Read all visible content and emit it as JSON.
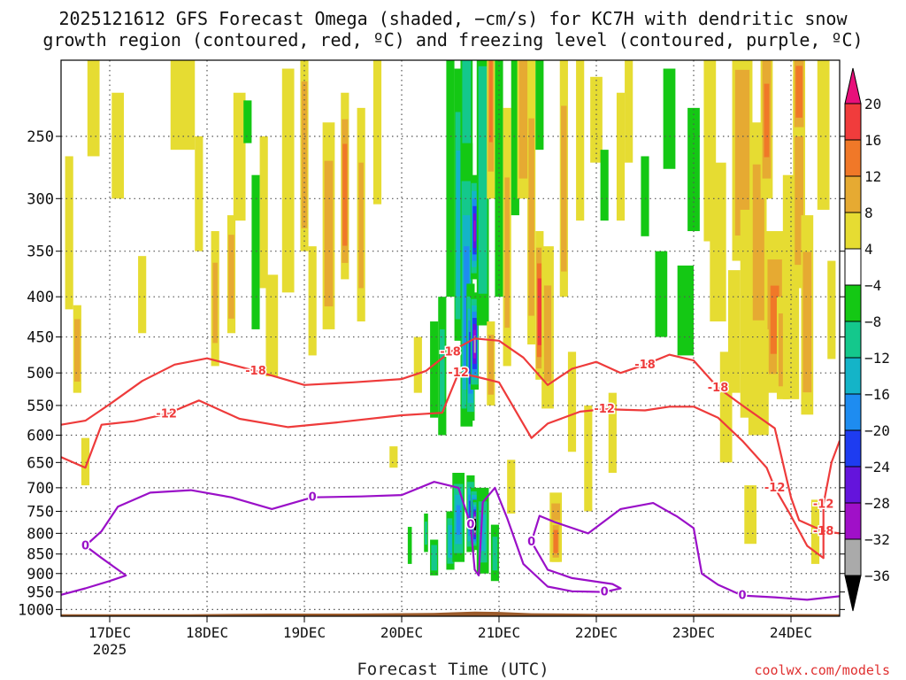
{
  "title": {
    "line1": "2025121612 GFS Forecast Omega (shaded, −cm/s) for KC7H with dendritic snow",
    "line2": "growth region (contoured, red, ºC) and freezing level (contoured, purple, ºC)"
  },
  "credit": "coolwx.com/models",
  "colors": {
    "grid": "#555555",
    "contour_dgz": "#ee3b3b",
    "contour_freezing": "#9a10c8",
    "ground": "#9b5a2a"
  },
  "chart_data": {
    "type": "heatmap",
    "title": "2025121612 GFS Forecast Omega (shaded, −cm/s) for KC7H with dendritic snow growth region (contoured, red, ºC) and freezing level (contoured, purple, ºC)",
    "xlabel": "Forecast Time (UTC)",
    "ylabel": "",
    "x_ticks": [
      "17DEC",
      "18DEC",
      "19DEC",
      "20DEC",
      "21DEC",
      "22DEC",
      "23DEC",
      "24DEC"
    ],
    "x_tick_year": "2025",
    "x_range_hours": [
      -12,
      180
    ],
    "y_ticks": [
      250,
      300,
      350,
      400,
      450,
      500,
      550,
      600,
      650,
      700,
      750,
      800,
      850,
      900,
      950,
      1000
    ],
    "y_range_hpa": [
      200,
      1020
    ],
    "colorbar": {
      "labels": [
        "20",
        "16",
        "12",
        "8",
        "4",
        "−4",
        "−8",
        "−12",
        "−16",
        "−20",
        "−24",
        "−28",
        "−32",
        "−36"
      ],
      "bins": [
        {
          "min": 20,
          "max": null,
          "color": "#e8107a"
        },
        {
          "min": 16,
          "max": 20,
          "color": "#f03c3c"
        },
        {
          "min": 12,
          "max": 16,
          "color": "#f07828"
        },
        {
          "min": 8,
          "max": 12,
          "color": "#e6aa32"
        },
        {
          "min": 4,
          "max": 8,
          "color": "#e6dc32"
        },
        {
          "min": -4,
          "max": 4,
          "color": "#ffffff"
        },
        {
          "min": -8,
          "max": -4,
          "color": "#14c814"
        },
        {
          "min": -12,
          "max": -8,
          "color": "#14c88c"
        },
        {
          "min": -16,
          "max": -12,
          "color": "#14b4c8"
        },
        {
          "min": -20,
          "max": -16,
          "color": "#1e8cf0"
        },
        {
          "min": -24,
          "max": -20,
          "color": "#1e3cf0"
        },
        {
          "min": -28,
          "max": -24,
          "color": "#6414dc"
        },
        {
          "min": -32,
          "max": -28,
          "color": "#a010c8"
        },
        {
          "min": -36,
          "max": -32,
          "color": "#aaaaaa"
        },
        {
          "min": null,
          "max": -36,
          "color": "#000000"
        }
      ]
    },
    "contour_labels": {
      "dgz_minus18": "-18",
      "dgz_minus12": "-12",
      "freezing_zero": "0"
    },
    "contours": {
      "dgz_minus18": [
        [
          -12,
          582
        ],
        [
          -6,
          575
        ],
        [
          0,
          548
        ],
        [
          8,
          512
        ],
        [
          16,
          488
        ],
        [
          24,
          479
        ],
        [
          36,
          497
        ],
        [
          48,
          518
        ],
        [
          60,
          514
        ],
        [
          72,
          509
        ],
        [
          78,
          497
        ],
        [
          84,
          470
        ],
        [
          90,
          452
        ],
        [
          96,
          455
        ],
        [
          102,
          478
        ],
        [
          108,
          518
        ],
        [
          114,
          494
        ],
        [
          120,
          484
        ],
        [
          126,
          500
        ],
        [
          132,
          488
        ],
        [
          138,
          474
        ],
        [
          144,
          482
        ],
        [
          150,
          522
        ],
        [
          156,
          550
        ],
        [
          164,
          588
        ],
        [
          168,
          720
        ],
        [
          170,
          770
        ],
        [
          176,
          795
        ],
        [
          180,
          800
        ]
      ],
      "dgz_minus12": [
        [
          -12,
          640
        ],
        [
          -6,
          660
        ],
        [
          -2,
          582
        ],
        [
          6,
          576
        ],
        [
          14,
          564
        ],
        [
          22,
          542
        ],
        [
          32,
          572
        ],
        [
          44,
          586
        ],
        [
          56,
          578
        ],
        [
          72,
          566
        ],
        [
          82,
          562
        ],
        [
          86,
          500
        ],
        [
          90,
          505
        ],
        [
          96,
          514
        ],
        [
          104,
          605
        ],
        [
          108,
          580
        ],
        [
          116,
          560
        ],
        [
          122,
          556
        ],
        [
          132,
          558
        ],
        [
          138,
          552
        ],
        [
          144,
          552
        ],
        [
          150,
          570
        ],
        [
          156,
          610
        ],
        [
          162,
          660
        ],
        [
          164,
          700
        ],
        [
          168,
          760
        ],
        [
          172,
          830
        ],
        [
          176,
          860
        ],
        [
          176,
          735
        ],
        [
          178,
          650
        ],
        [
          180,
          610
        ]
      ],
      "freezing_zero": [
        [
          -12,
          958
        ],
        [
          -6,
          940
        ],
        [
          0,
          920
        ],
        [
          4,
          905
        ],
        [
          -2,
          860
        ],
        [
          -6,
          830
        ],
        [
          -2,
          795
        ],
        [
          2,
          740
        ],
        [
          10,
          710
        ],
        [
          20,
          705
        ],
        [
          30,
          720
        ],
        [
          40,
          745
        ],
        [
          50,
          720
        ],
        [
          62,
          718
        ],
        [
          72,
          715
        ],
        [
          80,
          688
        ],
        [
          86,
          700
        ],
        [
          89,
          780
        ],
        [
          90,
          890
        ],
        [
          91,
          905
        ],
        [
          92,
          730
        ],
        [
          95,
          700
        ],
        [
          98,
          765
        ],
        [
          102,
          875
        ],
        [
          108,
          935
        ],
        [
          114,
          948
        ],
        [
          122,
          950
        ],
        [
          126,
          940
        ],
        [
          124,
          928
        ],
        [
          114,
          912
        ],
        [
          108,
          890
        ],
        [
          104,
          820
        ],
        [
          106,
          760
        ],
        [
          110,
          775
        ],
        [
          118,
          800
        ],
        [
          126,
          745
        ],
        [
          134,
          732
        ],
        [
          140,
          762
        ],
        [
          144,
          788
        ],
        [
          146,
          900
        ],
        [
          150,
          930
        ],
        [
          156,
          960
        ],
        [
          164,
          965
        ],
        [
          172,
          972
        ],
        [
          180,
          962
        ]
      ]
    },
    "omega_blobs": [
      {
        "t": -10,
        "p": 340,
        "w": 2,
        "h": 150,
        "v": 5
      },
      {
        "t": -8,
        "p": 470,
        "w": 2,
        "h": 120,
        "v": 9
      },
      {
        "t": -6,
        "p": 650,
        "w": 2,
        "h": 90,
        "v": 6
      },
      {
        "t": -4,
        "p": 230,
        "w": 3,
        "h": 70,
        "v": 5
      },
      {
        "t": 2,
        "p": 260,
        "w": 3,
        "h": 80,
        "v": 5
      },
      {
        "t": 8,
        "p": 400,
        "w": 2,
        "h": 90,
        "v": 6
      },
      {
        "t": 18,
        "p": 230,
        "w": 6,
        "h": 60,
        "v": 5
      },
      {
        "t": 22,
        "p": 300,
        "w": 2,
        "h": 100,
        "v": 6
      },
      {
        "t": 26,
        "p": 410,
        "w": 2,
        "h": 160,
        "v": 8
      },
      {
        "t": 30,
        "p": 380,
        "w": 2,
        "h": 130,
        "v": 9
      },
      {
        "t": 32,
        "p": 270,
        "w": 3,
        "h": 100,
        "v": 5
      },
      {
        "t": 34,
        "p": 240,
        "w": 2,
        "h": 30,
        "v": -6
      },
      {
        "t": 36,
        "p": 360,
        "w": 2,
        "h": 160,
        "v": -6
      },
      {
        "t": 38,
        "p": 320,
        "w": 2,
        "h": 140,
        "v": 7
      },
      {
        "t": 40,
        "p": 440,
        "w": 3,
        "h": 130,
        "v": 5
      },
      {
        "t": 44,
        "p": 300,
        "w": 3,
        "h": 190,
        "v": 5
      },
      {
        "t": 48,
        "p": 270,
        "w": 2,
        "h": 160,
        "v": 9
      },
      {
        "t": 50,
        "p": 410,
        "w": 2,
        "h": 130,
        "v": 6
      },
      {
        "t": 54,
        "p": 340,
        "w": 3,
        "h": 200,
        "v": 9
      },
      {
        "t": 58,
        "p": 300,
        "w": 2,
        "h": 160,
        "v": 13
      },
      {
        "t": 62,
        "p": 330,
        "w": 2,
        "h": 200,
        "v": 8
      },
      {
        "t": 66,
        "p": 250,
        "w": 2,
        "h": 110,
        "v": 6
      },
      {
        "t": 70,
        "p": 640,
        "w": 2,
        "h": 40,
        "v": 5
      },
      {
        "t": 74,
        "p": 830,
        "w": 1,
        "h": 90,
        "v": -6
      },
      {
        "t": 76,
        "p": 490,
        "w": 2,
        "h": 80,
        "v": 5
      },
      {
        "t": 78,
        "p": 800,
        "w": 1,
        "h": 90,
        "v": -8
      },
      {
        "t": 80,
        "p": 500,
        "w": 2,
        "h": 140,
        "v": -6
      },
      {
        "t": 80,
        "p": 860,
        "w": 2,
        "h": 90,
        "v": -9
      },
      {
        "t": 82,
        "p": 500,
        "w": 2,
        "h": 200,
        "v": -8
      },
      {
        "t": 84,
        "p": 300,
        "w": 2,
        "h": 200,
        "v": -7
      },
      {
        "t": 84,
        "p": 820,
        "w": 2,
        "h": 140,
        "v": -14
      },
      {
        "t": 86,
        "p": 330,
        "w": 2,
        "h": 250,
        "v": -13
      },
      {
        "t": 86,
        "p": 770,
        "w": 3,
        "h": 200,
        "v": -16
      },
      {
        "t": 88,
        "p": 200,
        "w": 3,
        "h": 170,
        "v": -10
      },
      {
        "t": 88,
        "p": 420,
        "w": 3,
        "h": 330,
        "v": -18
      },
      {
        "t": 89,
        "p": 480,
        "w": 2,
        "h": 190,
        "v": -23
      },
      {
        "t": 89,
        "p": 760,
        "w": 2,
        "h": 170,
        "v": -24
      },
      {
        "t": 90,
        "p": 460,
        "w": 2,
        "h": 130,
        "v": -32
      },
      {
        "t": 90,
        "p": 330,
        "w": 2,
        "h": 100,
        "v": -28
      },
      {
        "t": 90,
        "p": 770,
        "w": 2,
        "h": 140,
        "v": -36
      },
      {
        "t": 90,
        "p": 780,
        "w": 1,
        "h": 110,
        "v": -40
      },
      {
        "t": 92,
        "p": 300,
        "w": 3,
        "h": 270,
        "v": -10
      },
      {
        "t": 92,
        "p": 800,
        "w": 3,
        "h": 200,
        "v": -12
      },
      {
        "t": 94,
        "p": 220,
        "w": 2,
        "h": 160,
        "v": 12
      },
      {
        "t": 94,
        "p": 490,
        "w": 2,
        "h": 120,
        "v": 9
      },
      {
        "t": 95,
        "p": 850,
        "w": 2,
        "h": 140,
        "v": -8
      },
      {
        "t": 96,
        "p": 300,
        "w": 2,
        "h": 200,
        "v": -6
      },
      {
        "t": 98,
        "p": 360,
        "w": 2,
        "h": 260,
        "v": 8
      },
      {
        "t": 99,
        "p": 700,
        "w": 2,
        "h": 110,
        "v": 6
      },
      {
        "t": 100,
        "p": 230,
        "w": 2,
        "h": 170,
        "v": -7
      },
      {
        "t": 102,
        "p": 240,
        "w": 3,
        "h": 120,
        "v": 10
      },
      {
        "t": 104,
        "p": 330,
        "w": 2,
        "h": 260,
        "v": 9
      },
      {
        "t": 106,
        "p": 420,
        "w": 2,
        "h": 180,
        "v": 18
      },
      {
        "t": 106,
        "p": 220,
        "w": 2,
        "h": 80,
        "v": -5
      },
      {
        "t": 108,
        "p": 450,
        "w": 3,
        "h": 210,
        "v": 8
      },
      {
        "t": 110,
        "p": 790,
        "w": 3,
        "h": 160,
        "v": 10
      },
      {
        "t": 110,
        "p": 820,
        "w": 2,
        "h": 100,
        "v": 14
      },
      {
        "t": 112,
        "p": 300,
        "w": 2,
        "h": 200,
        "v": 9
      },
      {
        "t": 114,
        "p": 550,
        "w": 2,
        "h": 160,
        "v": 6
      },
      {
        "t": 116,
        "p": 260,
        "w": 2,
        "h": 120,
        "v": 5
      },
      {
        "t": 118,
        "p": 650,
        "w": 2,
        "h": 200,
        "v": 5
      },
      {
        "t": 120,
        "p": 240,
        "w": 3,
        "h": 60,
        "v": 6
      },
      {
        "t": 122,
        "p": 290,
        "w": 2,
        "h": 60,
        "v": -5
      },
      {
        "t": 124,
        "p": 600,
        "w": 2,
        "h": 140,
        "v": 5
      },
      {
        "t": 126,
        "p": 270,
        "w": 2,
        "h": 100,
        "v": 5
      },
      {
        "t": 128,
        "p": 230,
        "w": 2,
        "h": 80,
        "v": 5
      },
      {
        "t": 132,
        "p": 300,
        "w": 2,
        "h": 70,
        "v": -6
      },
      {
        "t": 136,
        "p": 400,
        "w": 3,
        "h": 100,
        "v": -5
      },
      {
        "t": 138,
        "p": 240,
        "w": 3,
        "h": 70,
        "v": -6
      },
      {
        "t": 142,
        "p": 420,
        "w": 4,
        "h": 110,
        "v": -6
      },
      {
        "t": 144,
        "p": 280,
        "w": 3,
        "h": 100,
        "v": -5
      },
      {
        "t": 148,
        "p": 260,
        "w": 3,
        "h": 160,
        "v": 5
      },
      {
        "t": 150,
        "p": 350,
        "w": 4,
        "h": 160,
        "v": 6
      },
      {
        "t": 152,
        "p": 560,
        "w": 3,
        "h": 180,
        "v": 6
      },
      {
        "t": 156,
        "p": 270,
        "w": 5,
        "h": 180,
        "v": 9
      },
      {
        "t": 158,
        "p": 440,
        "w": 5,
        "h": 260,
        "v": 7
      },
      {
        "t": 158,
        "p": 760,
        "w": 3,
        "h": 130,
        "v": 6
      },
      {
        "t": 160,
        "p": 350,
        "w": 4,
        "h": 220,
        "v": 9
      },
      {
        "t": 162,
        "p": 240,
        "w": 3,
        "h": 120,
        "v": 12
      },
      {
        "t": 164,
        "p": 430,
        "w": 5,
        "h": 200,
        "v": 12
      },
      {
        "t": 166,
        "p": 470,
        "w": 3,
        "h": 140,
        "v": 10
      },
      {
        "t": 168,
        "p": 410,
        "w": 4,
        "h": 260,
        "v": 6
      },
      {
        "t": 170,
        "p": 300,
        "w": 3,
        "h": 180,
        "v": 10
      },
      {
        "t": 172,
        "p": 440,
        "w": 3,
        "h": 250,
        "v": 9
      },
      {
        "t": 174,
        "p": 800,
        "w": 2,
        "h": 150,
        "v": 6
      },
      {
        "t": 176,
        "p": 250,
        "w": 3,
        "h": 120,
        "v": 5
      },
      {
        "t": 178,
        "p": 420,
        "w": 2,
        "h": 120,
        "v": 5
      },
      {
        "t": 170,
        "p": 220,
        "w": 3,
        "h": 60,
        "v": 13
      },
      {
        "t": 160,
        "p": 520,
        "w": 5,
        "h": 160,
        "v": 5
      },
      {
        "t": 154,
        "p": 450,
        "w": 3,
        "h": 160,
        "v": 5
      }
    ],
    "terrain": [
      [
        -12,
        1014
      ],
      [
        20,
        1014
      ],
      [
        40,
        1012
      ],
      [
        60,
        1012
      ],
      [
        80,
        1010
      ],
      [
        90,
        1006
      ],
      [
        96,
        1007
      ],
      [
        104,
        1011
      ],
      [
        120,
        1013
      ],
      [
        150,
        1013
      ],
      [
        180,
        1014
      ]
    ]
  }
}
